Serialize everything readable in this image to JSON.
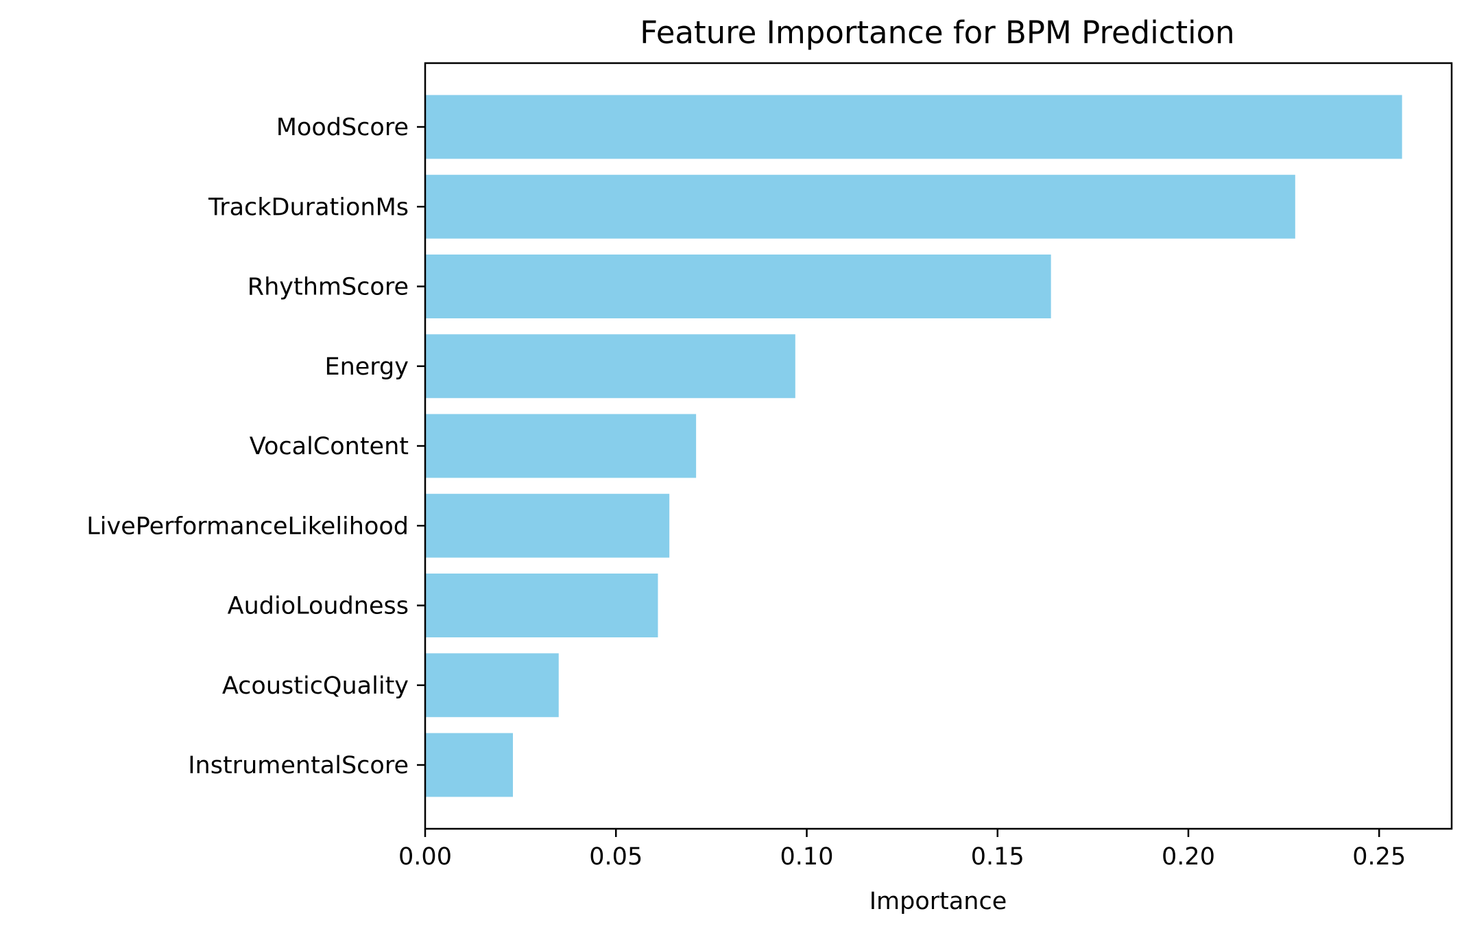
{
  "chart_data": {
    "type": "bar",
    "orientation": "horizontal",
    "title": "Feature Importance for BPM Prediction",
    "xlabel": "Importance",
    "ylabel": "",
    "xlim": [
      0,
      0.269
    ],
    "xticks": [
      0.0,
      0.05,
      0.1,
      0.15,
      0.2,
      0.25
    ],
    "xtick_labels": [
      "0.00",
      "0.05",
      "0.10",
      "0.15",
      "0.20",
      "0.25"
    ],
    "grid": false,
    "bar_color": "#87ceeb",
    "categories": [
      "MoodScore",
      "TrackDurationMs",
      "RhythmScore",
      "Energy",
      "VocalContent",
      "LivePerformanceLikelihood",
      "AudioLoudness",
      "AcousticQuality",
      "InstrumentalScore"
    ],
    "values": [
      0.256,
      0.228,
      0.164,
      0.097,
      0.071,
      0.064,
      0.061,
      0.035,
      0.023
    ]
  }
}
